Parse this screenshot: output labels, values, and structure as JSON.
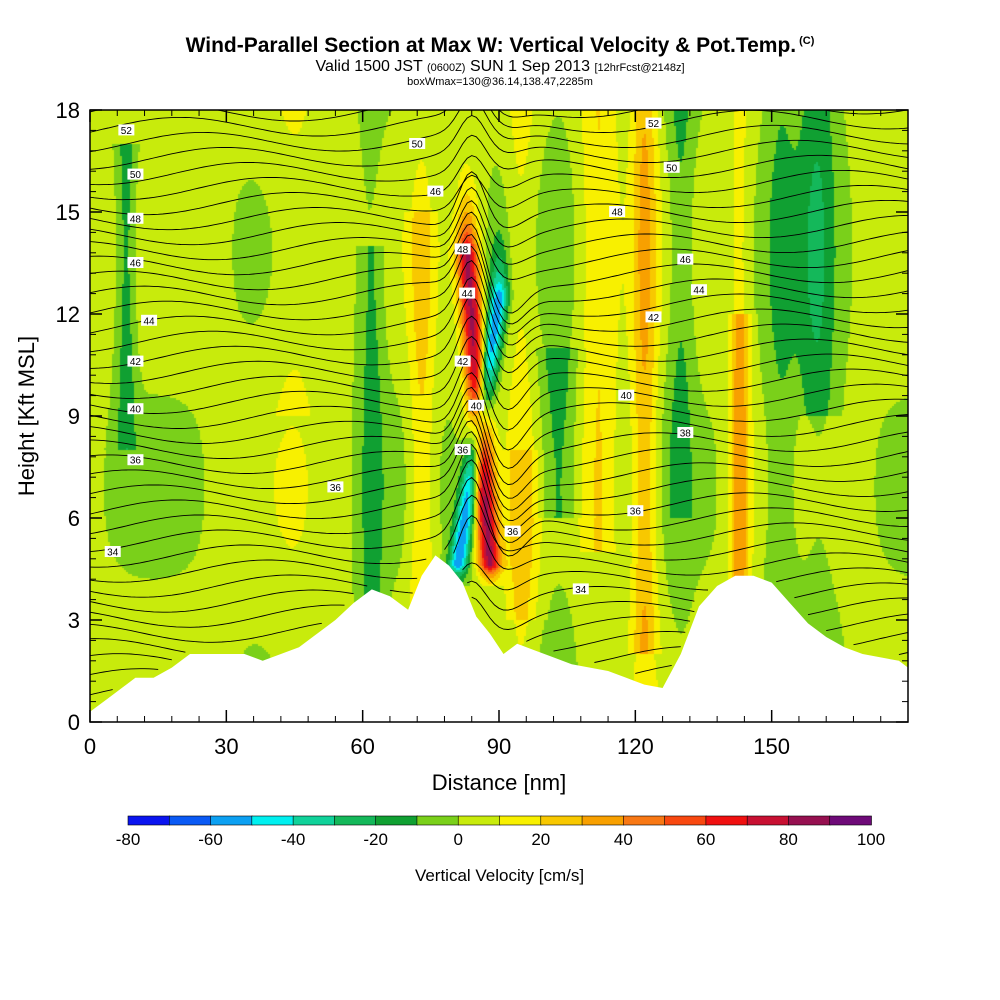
{
  "header": {
    "title": "Wind-Parallel Section at Max W: Vertical Velocity & Pot.Temp.",
    "title_mark": "(C)",
    "valid_prefix": "Valid 1500 JST",
    "valid_z": "(0600Z)",
    "valid_date": "SUN 1 Sep 2013",
    "valid_fcst": "[12hrFcst@2148z]",
    "box": "boxWmax=130@36.14,138.47,2285m"
  },
  "chart_data": {
    "type": "heatmap",
    "title": "Wind-Parallel Section at Max W: Vertical Velocity & Pot.Temp.",
    "xlabel": "Distance [nm]",
    "ylabel": "Height [Kft MSL]",
    "xlim": [
      0,
      180
    ],
    "ylim": [
      0,
      18
    ],
    "xticks": [
      0,
      30,
      60,
      90,
      120,
      150
    ],
    "yticks": [
      0,
      3,
      6,
      9,
      12,
      15,
      18
    ],
    "grid": false,
    "colorbar": {
      "label": "Vertical Velocity [cm/s]",
      "placement": "bottom",
      "ticks": [
        -80,
        -60,
        -40,
        -20,
        0,
        20,
        40,
        60,
        80,
        100
      ],
      "bounds": [
        -80,
        -70,
        -60,
        -50,
        -40,
        -30,
        -20,
        -10,
        0,
        10,
        20,
        30,
        40,
        50,
        60,
        70,
        80,
        90,
        100
      ],
      "colors": [
        "#0a14f0",
        "#0a5af5",
        "#0ca0f2",
        "#00f0f0",
        "#10d29a",
        "#14b85a",
        "#10a032",
        "#7ad01a",
        "#c8eb0c",
        "#f8f000",
        "#f8c800",
        "#f8a000",
        "#f87814",
        "#f84810",
        "#f01010",
        "#c81032",
        "#961050",
        "#6e0a78"
      ]
    },
    "contours": {
      "field": "Potential temperature",
      "labels": [
        "34",
        "36",
        "38",
        "40",
        "42",
        "44",
        "46",
        "48",
        "50",
        "52"
      ]
    },
    "terrain": {
      "x": [
        0,
        2,
        4,
        7,
        10,
        14,
        18,
        22,
        26,
        30,
        34,
        38,
        42,
        46,
        50,
        54,
        58,
        62,
        66,
        70,
        73,
        76,
        79,
        82,
        85,
        88,
        91,
        94,
        98,
        102,
        106,
        110,
        114,
        118,
        122,
        126,
        130,
        134,
        138,
        142,
        146,
        150,
        154,
        158,
        162,
        166,
        170,
        174,
        178,
        180
      ],
      "y": [
        0.3,
        0.5,
        0.7,
        1.0,
        1.3,
        1.3,
        1.6,
        2.0,
        2.0,
        2.0,
        2.0,
        1.8,
        2.0,
        2.2,
        2.6,
        3.0,
        3.5,
        3.9,
        3.7,
        3.3,
        4.3,
        4.9,
        4.6,
        4.1,
        3.1,
        2.6,
        2.0,
        2.3,
        2.1,
        1.9,
        1.7,
        1.6,
        1.5,
        1.3,
        1.1,
        1.0,
        2.0,
        3.4,
        4.0,
        4.3,
        4.3,
        4.1,
        3.5,
        2.9,
        2.5,
        2.2,
        2.0,
        1.9,
        1.8,
        1.6
      ]
    },
    "features": [
      {
        "name": "updraft",
        "x_base": 88,
        "y_base": 4.6,
        "x_top": 83,
        "y_top": 13.8,
        "peak": 80
      },
      {
        "name": "downdraft",
        "x_base": 81,
        "y_base": 4.6,
        "x_top": 90,
        "y_top": 12.5,
        "peak": -60
      }
    ]
  }
}
